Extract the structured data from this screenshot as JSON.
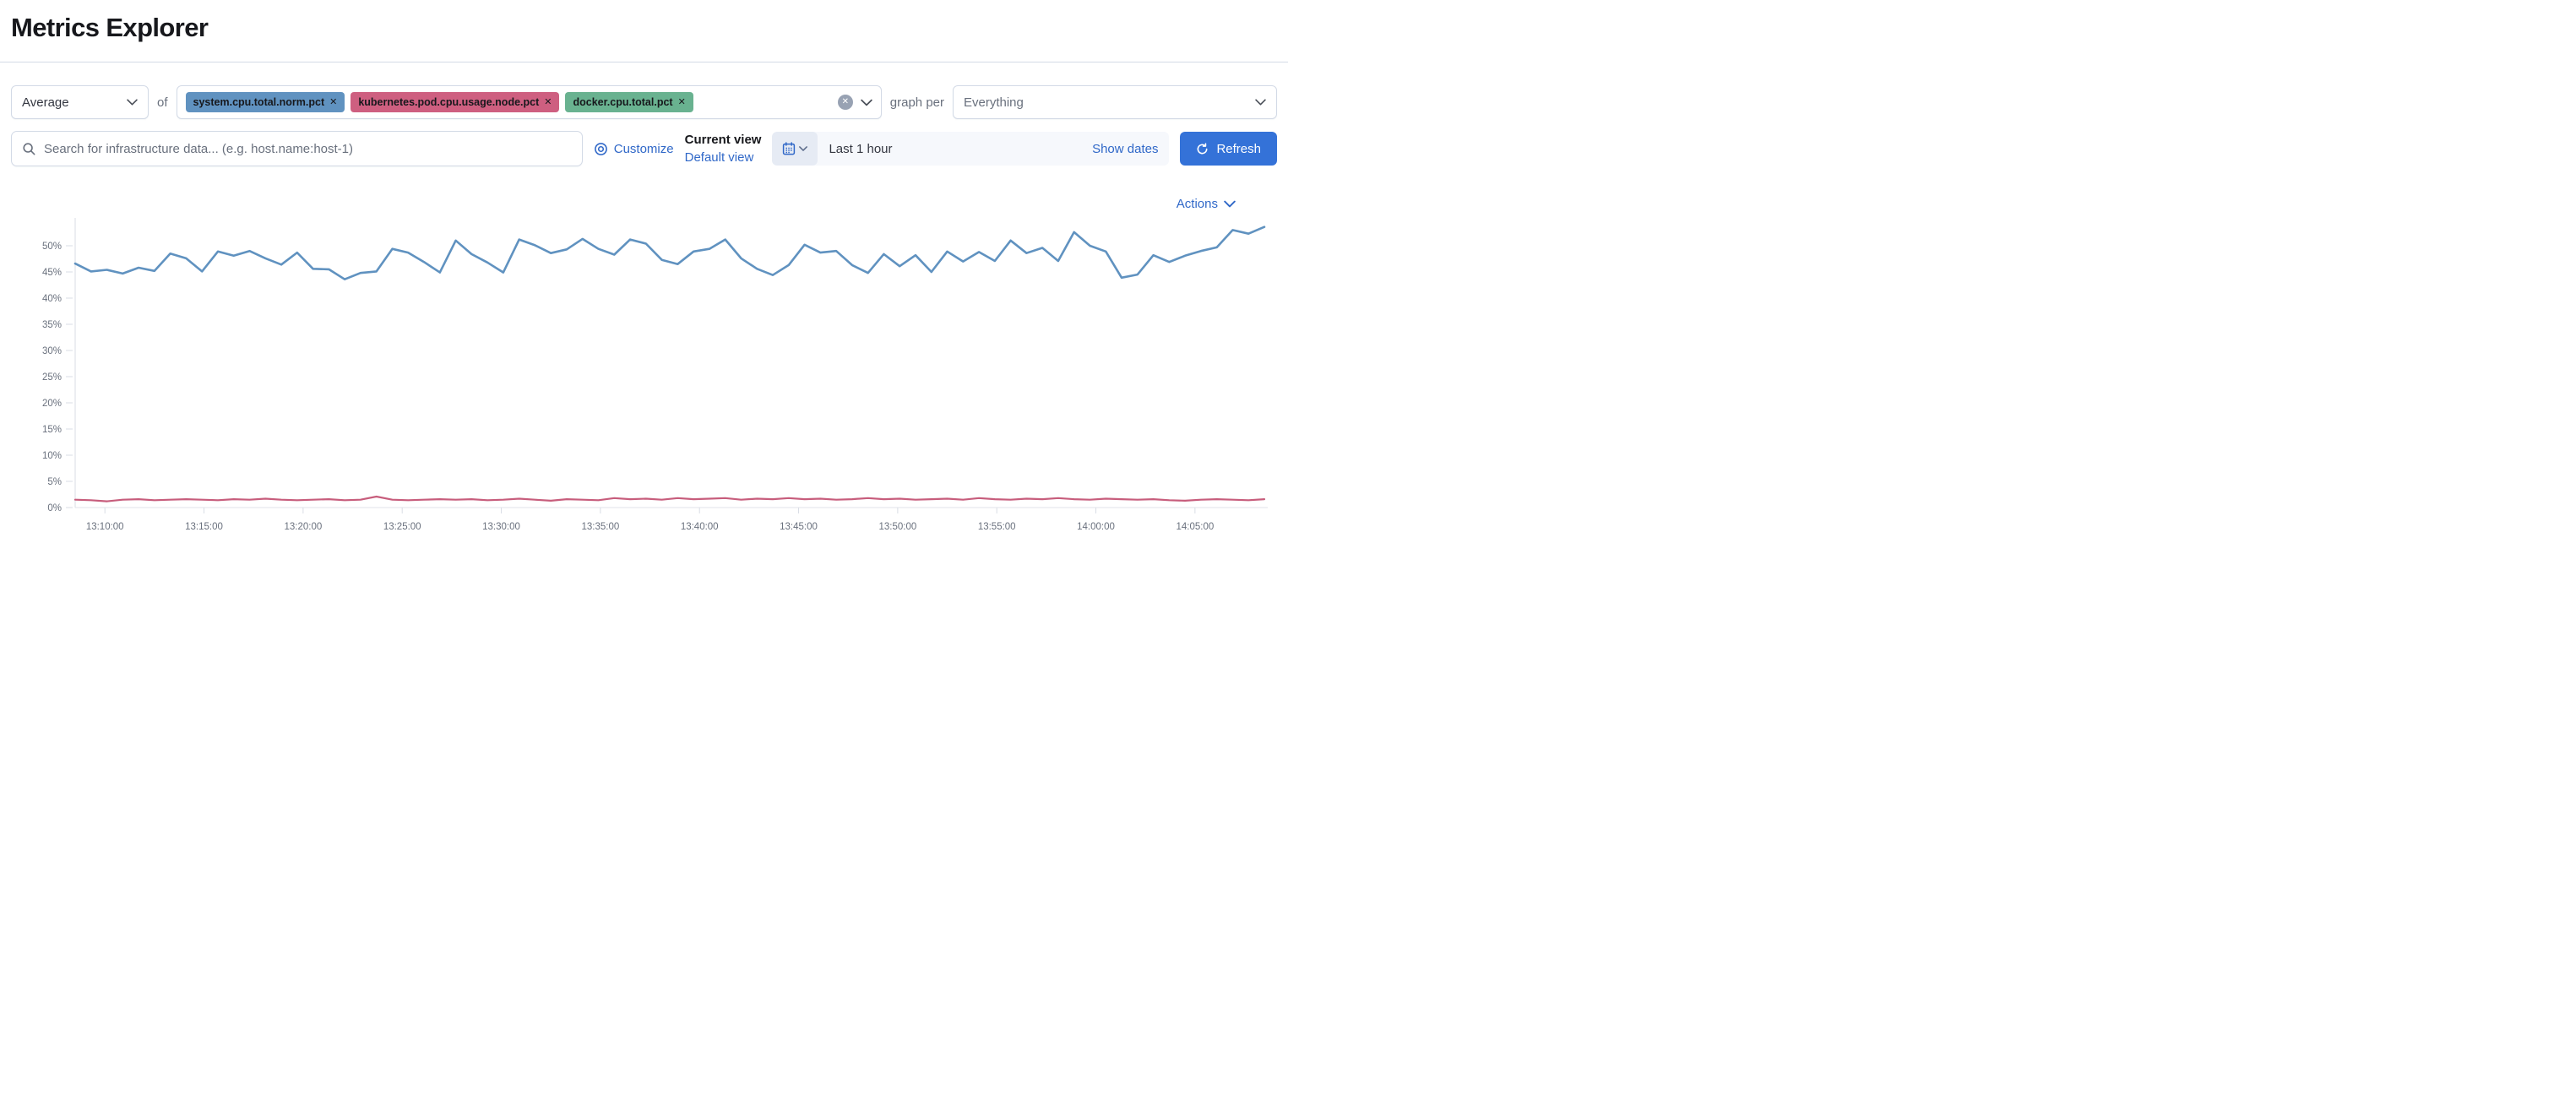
{
  "page": {
    "title": "Metrics Explorer"
  },
  "colors": {
    "accent_link": "#3068c8",
    "refresh_button": "#3472d8",
    "tag_text": "#17181c",
    "clear_circle": "#98a2b3",
    "axis_text": "#69707d",
    "line_blue": "#6092C0",
    "line_pink": "#C75D7C"
  },
  "toolbar": {
    "aggregation_value": "Average",
    "of_label": "of",
    "metrics": [
      {
        "label": "system.cpu.total.norm.pct",
        "color": "#6092C0"
      },
      {
        "label": "kubernetes.pod.cpu.usage.node.pct",
        "color": "#CE5F80"
      },
      {
        "label": "docker.cpu.total.pct",
        "color": "#69B290"
      }
    ],
    "remove_glyph": "✕",
    "graph_per_label": "graph per",
    "group_by_value": "Everything"
  },
  "search": {
    "placeholder": "Search for infrastructure data... (e.g. host.name:host-1)"
  },
  "view_controls": {
    "customize_label": "Customize",
    "current_view_label": "Current view",
    "default_view_label": "Default view"
  },
  "datepicker": {
    "value": "Last 1 hour",
    "show_dates_label": "Show dates",
    "refresh_label": "Refresh"
  },
  "actions": {
    "label": "Actions"
  },
  "icons": {
    "aggregation_chevron": "chevron-down",
    "combobox_clear": "cross-in-circle",
    "combobox_chevron": "chevron-down",
    "group_chevron": "chevron-down",
    "search": "magnifier",
    "customize": "bullseye",
    "calendar": "calendar",
    "calendar_chevron": "chevron-down",
    "refresh": "refresh-arrow",
    "actions_chevron": "chevron-down"
  },
  "chart_data": {
    "type": "line",
    "title": "",
    "xlabel": "",
    "ylabel": "",
    "ylim": [
      0,
      55
    ],
    "grid": false,
    "legend": false,
    "y_ticks": [
      "0%",
      "5%",
      "10%",
      "15%",
      "20%",
      "25%",
      "30%",
      "35%",
      "40%",
      "45%",
      "50%"
    ],
    "x_start": "13:08:30",
    "x_end": "14:08:30",
    "x_ticks": [
      "13:10:00",
      "13:15:00",
      "13:20:00",
      "13:25:00",
      "13:30:00",
      "13:35:00",
      "13:40:00",
      "13:45:00",
      "13:50:00",
      "13:55:00",
      "14:00:00",
      "14:05:00"
    ],
    "series": [
      {
        "name": "system.cpu.total.norm.pct (Average)",
        "color": "#6092C0",
        "stroke_width": 2.6,
        "values": [
          46.6,
          45.1,
          45.4,
          44.7,
          45.8,
          45.2,
          48.5,
          47.6,
          45.1,
          48.9,
          48.1,
          49.0,
          47.6,
          46.4,
          48.7,
          45.6,
          45.5,
          43.6,
          44.8,
          45.1,
          49.4,
          48.7,
          46.9,
          44.9,
          51.0,
          48.4,
          46.8,
          44.9,
          51.2,
          50.1,
          48.6,
          49.3,
          51.3,
          49.4,
          48.3,
          51.2,
          50.4,
          47.3,
          46.5,
          48.9,
          49.4,
          51.2,
          47.6,
          45.6,
          44.4,
          46.3,
          50.2,
          48.7,
          49.0,
          46.3,
          44.8,
          48.4,
          46.1,
          48.2,
          45.0,
          48.9,
          47.0,
          48.8,
          47.1,
          51.0,
          48.6,
          49.6,
          47.1,
          52.6,
          50.0,
          48.9,
          43.9,
          44.5,
          48.2,
          46.9,
          48.1,
          49.0,
          49.7,
          53.0,
          52.3,
          53.6
        ]
      },
      {
        "name": "kubernetes.pod.cpu.usage.node.pct (Average)",
        "color": "#C75D7C",
        "stroke_width": 2.2,
        "values": [
          1.5,
          1.4,
          1.2,
          1.5,
          1.6,
          1.4,
          1.5,
          1.6,
          1.5,
          1.4,
          1.6,
          1.5,
          1.7,
          1.5,
          1.4,
          1.5,
          1.6,
          1.4,
          1.5,
          2.1,
          1.5,
          1.4,
          1.5,
          1.6,
          1.5,
          1.6,
          1.4,
          1.5,
          1.7,
          1.5,
          1.3,
          1.6,
          1.5,
          1.4,
          1.8,
          1.6,
          1.7,
          1.5,
          1.8,
          1.6,
          1.7,
          1.8,
          1.5,
          1.7,
          1.6,
          1.8,
          1.6,
          1.7,
          1.5,
          1.6,
          1.8,
          1.6,
          1.7,
          1.5,
          1.6,
          1.7,
          1.5,
          1.8,
          1.6,
          1.5,
          1.7,
          1.6,
          1.8,
          1.6,
          1.5,
          1.7,
          1.6,
          1.5,
          1.6,
          1.4,
          1.3,
          1.5,
          1.6,
          1.5,
          1.4,
          1.6
        ]
      }
    ]
  }
}
